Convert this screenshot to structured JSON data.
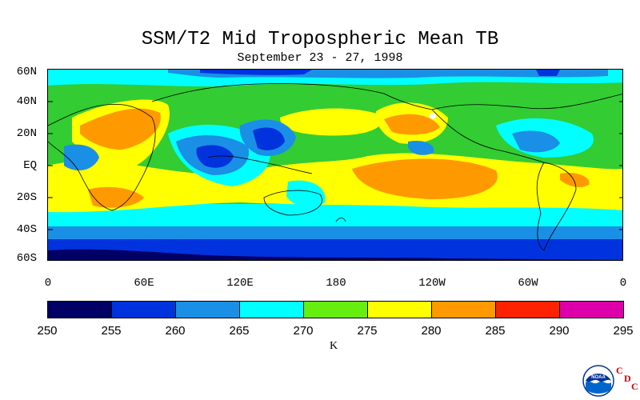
{
  "title": "SSM/T2 Mid Tropospheric Mean TB",
  "subtitle": "September 23 - 27, 1998",
  "lat_labels": [
    "60N",
    "40N",
    "20N",
    "EQ",
    "20S",
    "40S",
    "60S"
  ],
  "lon_labels": [
    "0",
    "60E",
    "120E",
    "180",
    "120W",
    "60W",
    "0"
  ],
  "colorbar": {
    "units": "K",
    "levels": [
      "250",
      "255",
      "260",
      "265",
      "270",
      "275",
      "280",
      "285",
      "290",
      "295"
    ],
    "colors": [
      "#000066",
      "#0033dd",
      "#1a8fe6",
      "#00ffff",
      "#66ee11",
      "#ffff00",
      "#ff9900",
      "#ff2200",
      "#dd00aa"
    ]
  },
  "logo": {
    "name": "NOAA",
    "c1": "C",
    "d": "D",
    "c2": "C"
  }
}
